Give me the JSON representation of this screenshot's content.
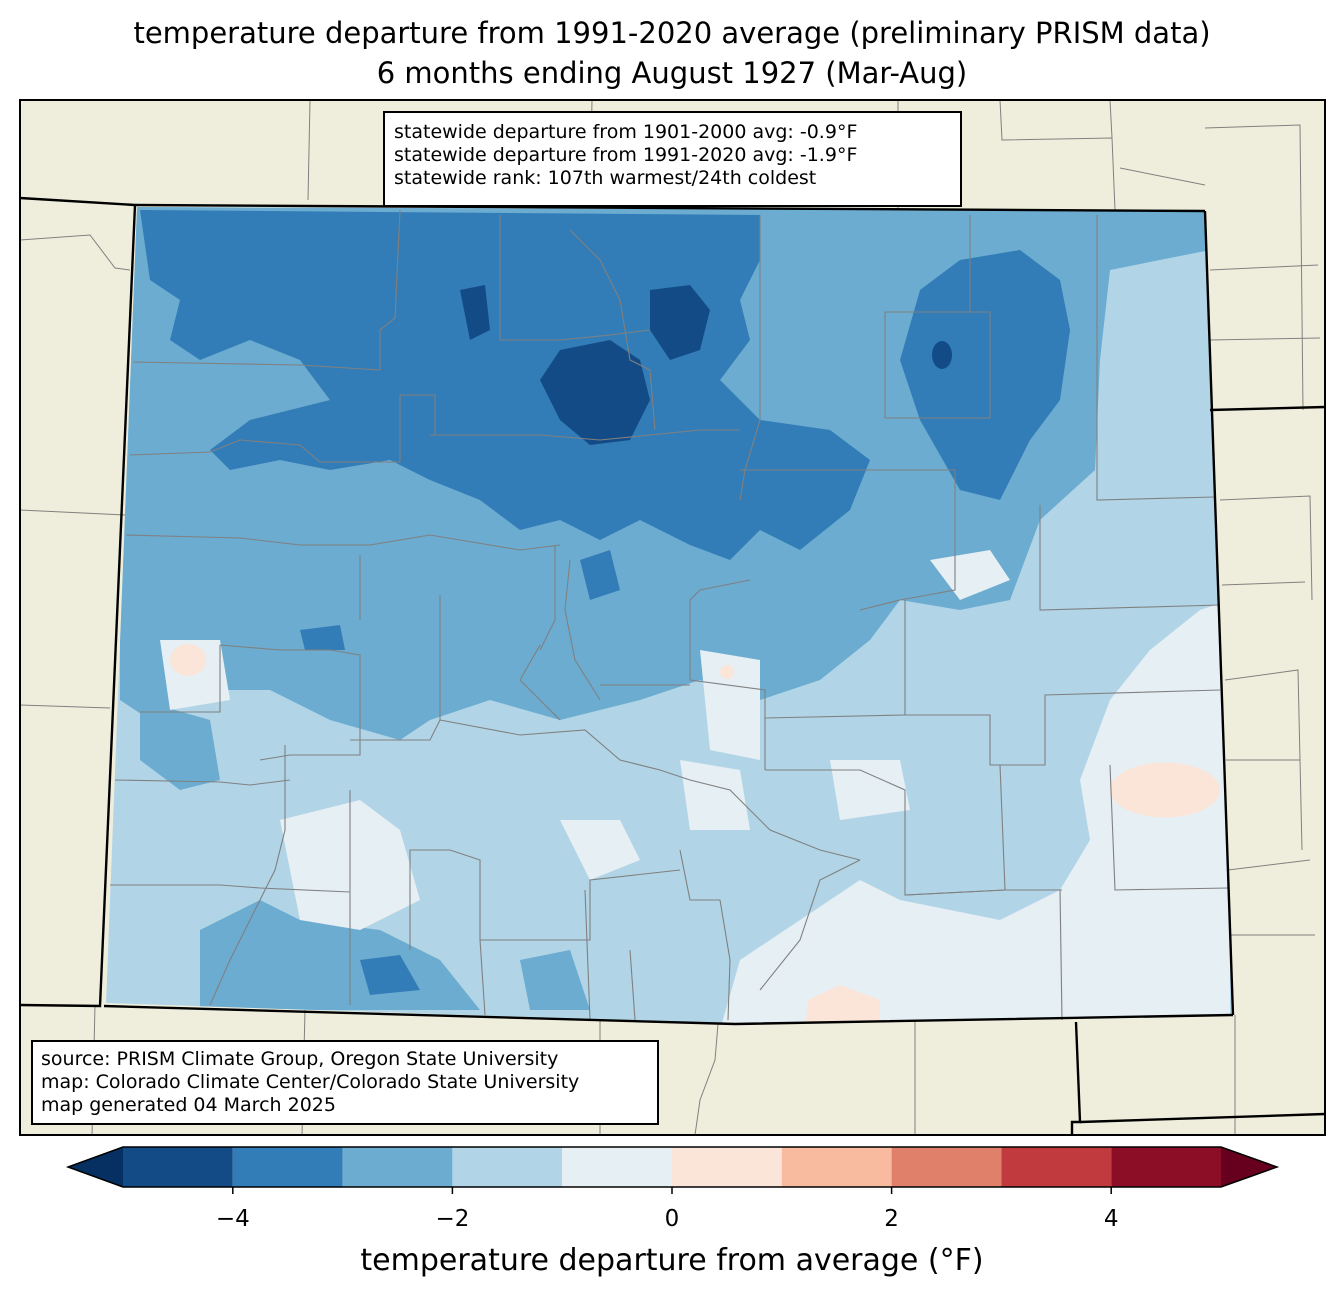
{
  "title": {
    "line1": "temperature departure from 1991-2020 average (preliminary PRISM data)",
    "line2": "6 months ending August 1927 (Mar-Aug)"
  },
  "stats": {
    "line1": "statewide departure from 1901-2000 avg: -0.9°F",
    "line2": "statewide departure from 1991-2020 avg: -1.9°F",
    "line3": "statewide rank: 107th warmest/24th coldest"
  },
  "source": {
    "line1": "source: PRISM Climate Group, Oregon State University",
    "line2": "map: Colorado Climate Center/Colorado State University",
    "line3": "map generated 04 March 2025"
  },
  "colorbar": {
    "label": "temperature departure from average (°F)",
    "bins": [
      -5,
      -4,
      -3,
      -2,
      -1,
      0,
      1,
      2,
      3,
      4,
      5
    ],
    "colors": [
      "#134b87",
      "#327db7",
      "#6bacd0",
      "#b1d5e7",
      "#e6eff4",
      "#fbe5d8",
      "#f8bba0",
      "#e0806a",
      "#c13a3e",
      "#8c0e26"
    ],
    "extend_low_color": "#053061",
    "extend_high_color": "#67001f",
    "ticks": [
      "−4",
      "−2",
      "0",
      "2",
      "4"
    ],
    "tick_values": [
      -4,
      -2,
      0,
      2,
      4
    ]
  },
  "map_colors": {
    "land": "#efeedc",
    "county_lines": "#808080",
    "state_lines": "#000000"
  }
}
